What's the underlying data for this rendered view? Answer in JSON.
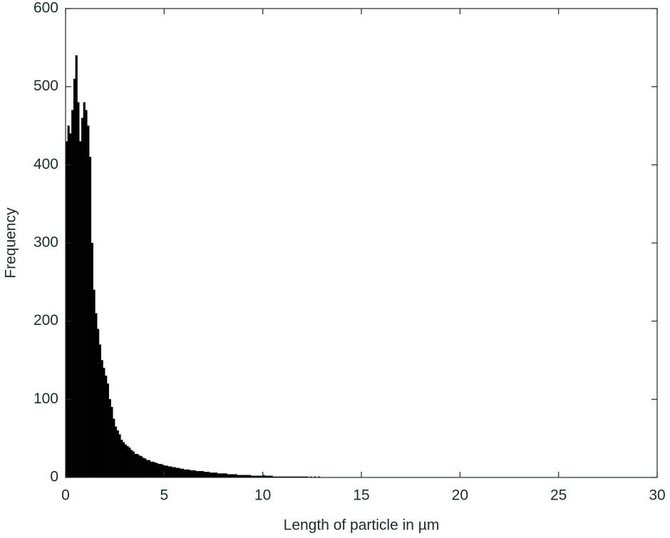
{
  "chart_data": {
    "type": "histogram",
    "x_label": "Length of particle in µm",
    "y_label": "Frequency",
    "color": "#000000",
    "bins": [
      0,
      0.1,
      0.2,
      0.3,
      0.4,
      0.5,
      0.6,
      0.7,
      0.8,
      0.9,
      1,
      1.1,
      1.2,
      1.3,
      1.4,
      1.5,
      1.6,
      1.7,
      1.8,
      1.9,
      2,
      2.1,
      2.2,
      2.3,
      2.4,
      2.5,
      2.6,
      2.7,
      2.8,
      2.9,
      3,
      3.1,
      3.2,
      3.3,
      3.4,
      3.5,
      3.6,
      3.7,
      3.8,
      3.9,
      4,
      4.1,
      4.2,
      4.3,
      4.4,
      4.5,
      4.6,
      4.7,
      4.8,
      4.9,
      5,
      5.1,
      5.2,
      5.3,
      5.4,
      5.5,
      5.6,
      5.7,
      5.8,
      5.9,
      6,
      6.1,
      6.2,
      6.3,
      6.4,
      6.5,
      6.6,
      6.7,
      6.8,
      6.9,
      7,
      7.1,
      7.2,
      7.3,
      7.4,
      7.5,
      7.6,
      7.7,
      7.8,
      7.9,
      8,
      8.1,
      8.2,
      8.3,
      8.4,
      8.5,
      8.6,
      8.7,
      8.8,
      8.9,
      9,
      9.1,
      9.2,
      9.3,
      9.4,
      9.5,
      9.6,
      9.7,
      9.8,
      9.9,
      10,
      10.1,
      10.2,
      10.3,
      10.4,
      10.5,
      10.6,
      10.7,
      10.8,
      10.9,
      11,
      11.1,
      11.2,
      11.3,
      11.4,
      11.5,
      11.6,
      11.7,
      11.8,
      11.9,
      12,
      12.1,
      12.2,
      12.3,
      12.4,
      12.5,
      12.6,
      12.7,
      12.8,
      12.9,
      13
    ],
    "values": [
      430,
      450,
      440,
      470,
      510,
      540,
      480,
      430,
      460,
      480,
      470,
      450,
      410,
      300,
      240,
      210,
      190,
      170,
      150,
      140,
      130,
      120,
      100,
      90,
      75,
      65,
      60,
      55,
      48,
      45,
      42,
      40,
      38,
      35,
      33,
      30,
      30,
      28,
      27,
      25,
      24,
      22,
      22,
      20,
      20,
      19,
      18,
      17,
      17,
      16,
      15,
      15,
      14,
      14,
      13,
      13,
      12,
      12,
      11,
      11,
      10,
      10,
      10,
      9,
      9,
      9,
      8,
      8,
      8,
      8,
      7,
      7,
      7,
      6,
      6,
      6,
      6,
      5,
      5,
      5,
      5,
      5,
      4,
      4,
      4,
      4,
      4,
      3,
      3,
      3,
      3,
      3,
      3,
      3,
      2,
      2,
      2,
      2,
      2,
      2,
      3,
      2,
      2,
      2,
      2,
      1,
      1,
      1,
      1,
      1,
      1,
      1,
      1,
      1,
      1,
      1,
      1,
      1,
      1,
      1,
      1,
      1,
      1,
      0,
      1,
      0,
      1,
      0,
      1,
      0
    ],
    "xlim": [
      0,
      30
    ],
    "xticks": [
      0,
      5,
      10,
      15,
      20,
      25,
      30
    ],
    "ylim": [
      0,
      600
    ],
    "yticks": [
      0,
      100,
      200,
      300,
      400,
      500,
      600
    ]
  }
}
